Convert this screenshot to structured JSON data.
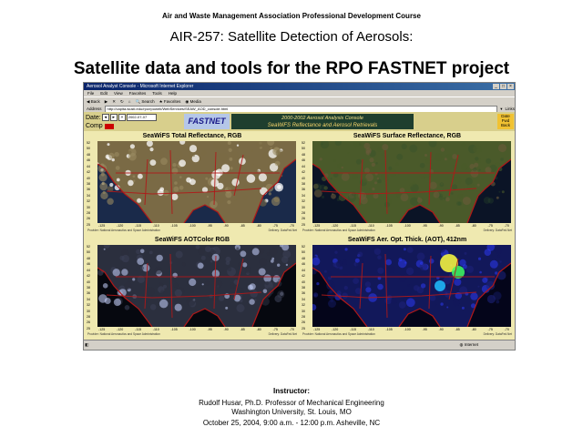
{
  "header": {
    "organization": "Air and Waste Management Association Professional Development Course",
    "course": "AIR-257: Satellite Detection of Aerosols:",
    "title": "Satellite data and tools for the RPO FASTNET project"
  },
  "browser": {
    "window_title": "Aerosol Analyst Console - Microsoft Internet Explorer",
    "menu": [
      "File",
      "Edit",
      "View",
      "Favorites",
      "Tools",
      "Help"
    ],
    "toolbar": {
      "back": "Back",
      "search": "Search",
      "favorites": "Favorites",
      "media": "Media"
    },
    "address_label": "Address",
    "address_value": "http://capita.wustl.edu/rpo/rpoweb/WebServices/SEAW_AOD_console.html",
    "links_label": "Links",
    "status_internet": "Internet"
  },
  "console": {
    "date_label": "Date:",
    "date_value": "2002-07-07",
    "comp_label": "Comp",
    "logo_text": "FASTNET",
    "banner_line1": "2000-2002     Aerosol Analysis Console",
    "banner_line2": "SeaWiFS Reflectance and Aerosol Retrievals",
    "side_label_1": "Date",
    "side_label_2": "Fwd",
    "side_label_3": "Back"
  },
  "panels": [
    {
      "title": "SeaWiFS Total Reflectance, RGB",
      "theme": "clouds"
    },
    {
      "title": "SeaWiFS Surface Reflectance, RGB",
      "theme": "surface"
    },
    {
      "title": "SeaWiFS AOTColor RGB",
      "theme": "aotcolor"
    },
    {
      "title": "SeaWiFS Aer. Opt. Thick. (AOT), 412nm",
      "theme": "aot"
    }
  ],
  "axes": {
    "y_ticks": [
      "52",
      "50",
      "48",
      "46",
      "44",
      "42",
      "40",
      "38",
      "36",
      "34",
      "32",
      "30",
      "28",
      "26",
      "25"
    ],
    "x_ticks": [
      "-125",
      "-120",
      "-115",
      "-110",
      "-105",
      "-100",
      "-95",
      "-90",
      "-85",
      "-80",
      "-75",
      "-70"
    ],
    "provider": "Provider: National Aeronautics and Space Administration",
    "delivery": "Delivery: DataFed.Net"
  },
  "footer": {
    "instructor_label": "Instructor:",
    "name_line": "Rudolf Husar, Ph.D. Professor of Mechanical Engineering",
    "affiliation_line": "Washington University, St. Louis, MO",
    "date_line": "October 25, 2004, 9:00 a.m. - 12:00 p.m. Asheville, NC"
  },
  "colors": {
    "console_bg": "#efe9b0",
    "banner_bg": "#1e3e2e",
    "boundary_lines": "#b01818",
    "titlebar": "#0a246a"
  }
}
